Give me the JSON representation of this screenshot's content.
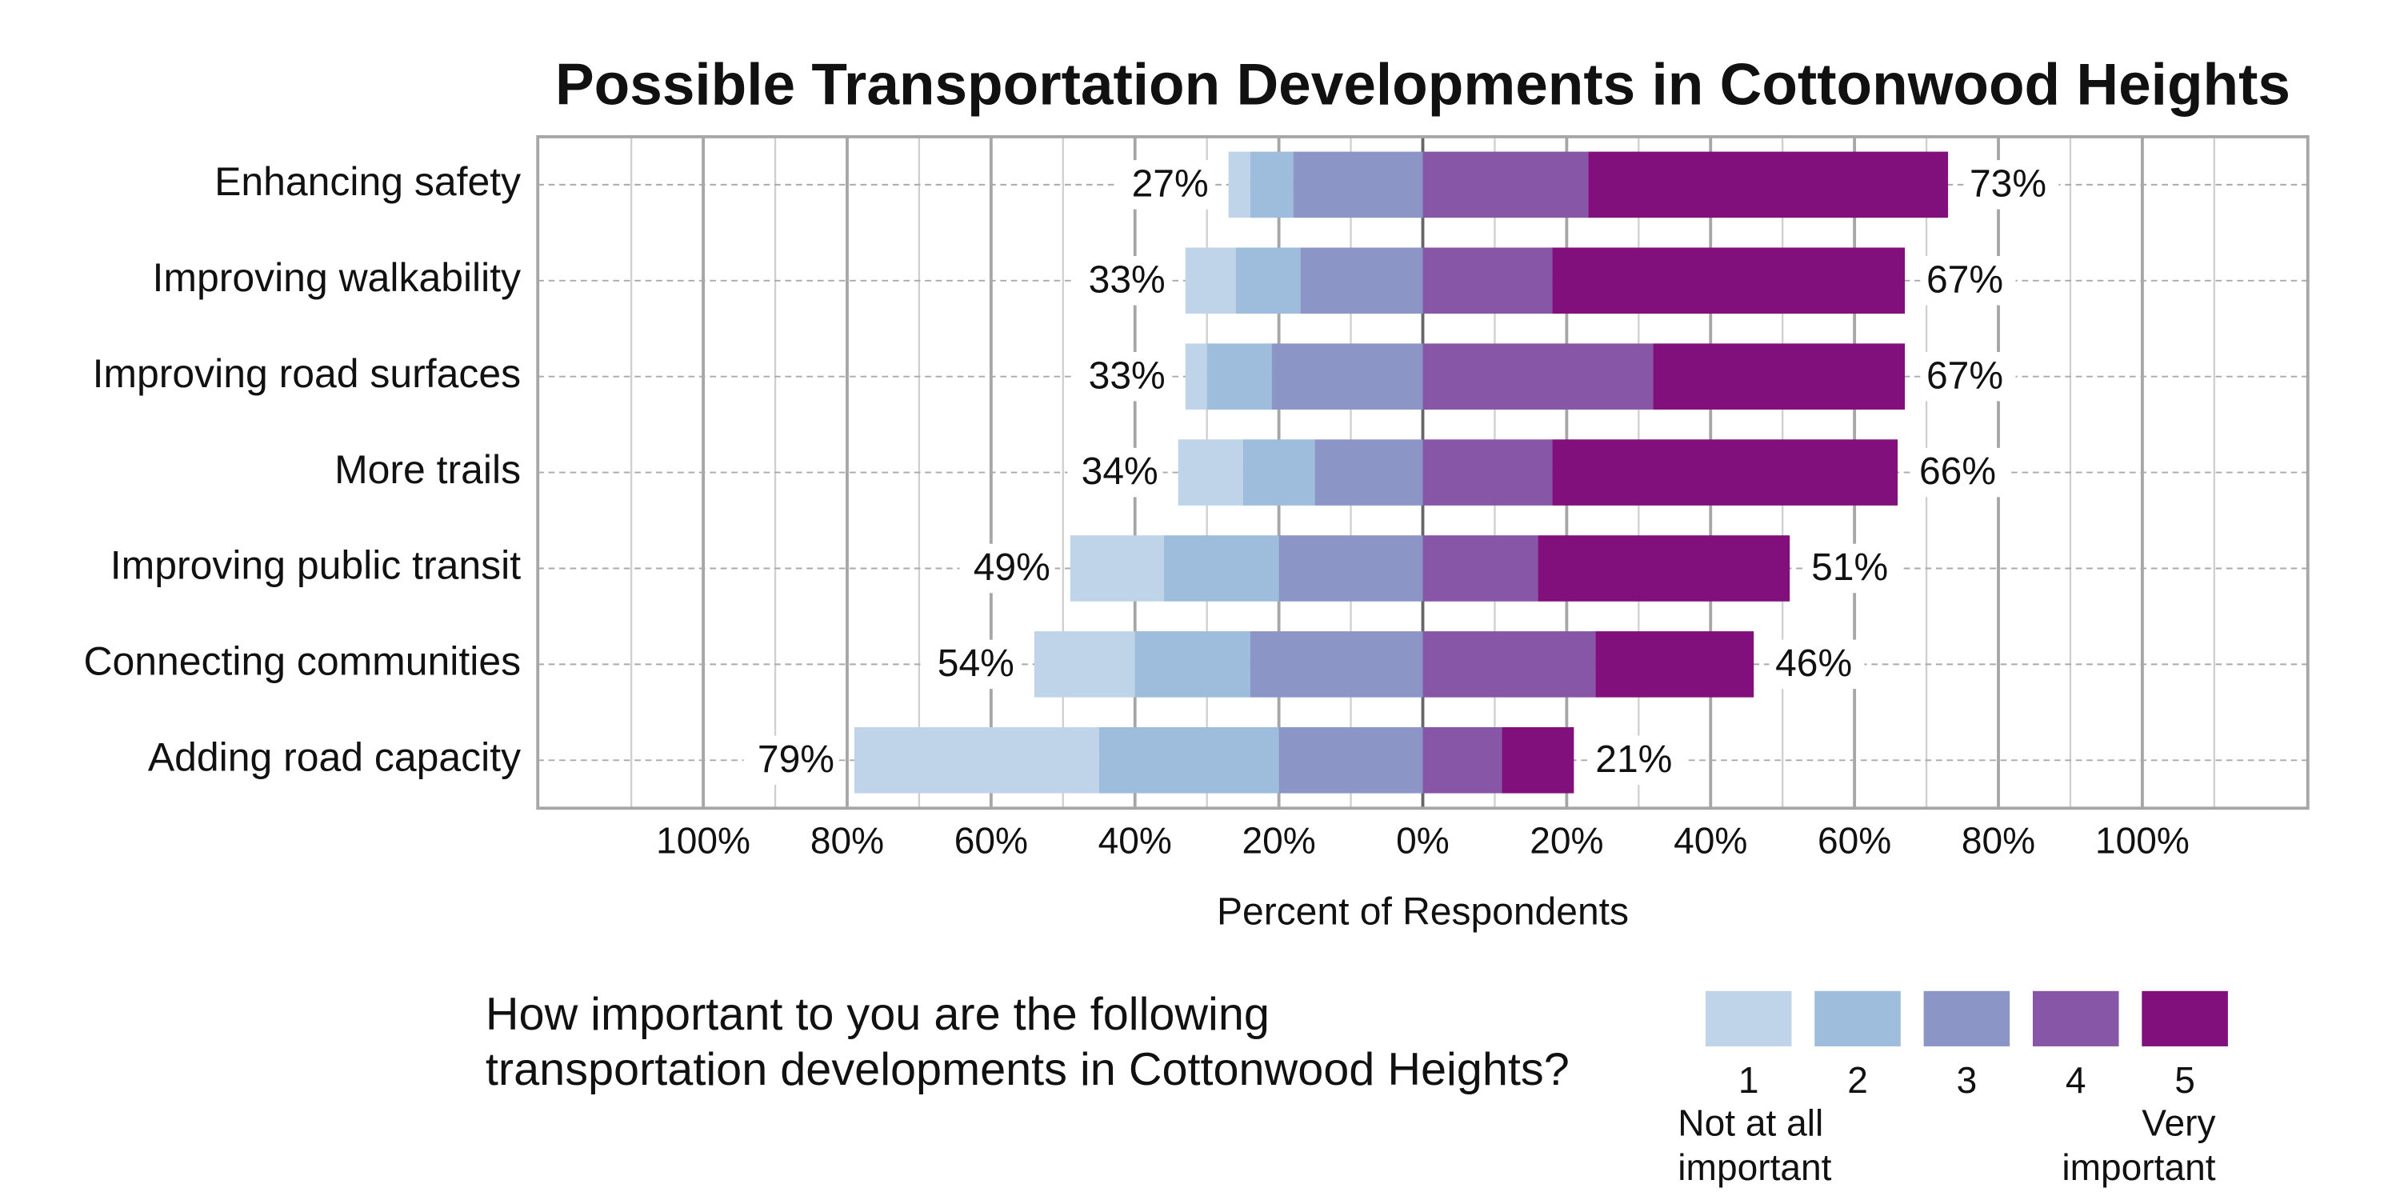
{
  "chart_data": {
    "type": "diverging_bar",
    "title": "Possible Transportation Developments in Cottonwood Heights",
    "x_label": "Percent of Respondents",
    "categories": [
      "Enhancing safety",
      "Improving walkability",
      "Improving road surfaces",
      "More trails",
      "Improving public transit",
      "Connecting communities",
      "Adding road capacity"
    ],
    "series": [
      {
        "name": "1",
        "color": "#bfd4e8",
        "side": "left",
        "values": [
          3,
          7,
          3,
          9,
          13,
          14,
          34
        ]
      },
      {
        "name": "2",
        "color": "#9ebcdb",
        "side": "left",
        "values": [
          6,
          9,
          9,
          10,
          16,
          16,
          25
        ]
      },
      {
        "name": "3",
        "color": "#8c96c6",
        "side": "left",
        "values": [
          18,
          17,
          21,
          15,
          20,
          24,
          20
        ]
      },
      {
        "name": "4",
        "color": "#8856a7",
        "side": "right",
        "values": [
          23,
          18,
          32,
          18,
          16,
          24,
          11
        ]
      },
      {
        "name": "5",
        "color": "#810f7c",
        "side": "right",
        "values": [
          50,
          49,
          35,
          48,
          35,
          22,
          10
        ]
      }
    ],
    "left_totals": {
      "values": [
        27,
        33,
        33,
        34,
        49,
        54,
        79
      ],
      "value_labels": [
        "27%",
        "33%",
        "33%",
        "34%",
        "49%",
        "54%",
        "79%"
      ]
    },
    "right_totals": {
      "values": [
        73,
        67,
        67,
        66,
        51,
        46,
        21
      ],
      "value_labels": [
        "73%",
        "67%",
        "67%",
        "66%",
        "51%",
        "46%",
        "21%"
      ]
    },
    "xlim": [
      -123,
      123
    ],
    "xticks": [
      {
        "value": -100,
        "label": "100%"
      },
      {
        "value": -80,
        "label": "80%"
      },
      {
        "value": -60,
        "label": "60%"
      },
      {
        "value": -40,
        "label": "40%"
      },
      {
        "value": -20,
        "label": "20%"
      },
      {
        "value": 0,
        "label": "0%"
      },
      {
        "value": 20,
        "label": "20%"
      },
      {
        "value": 40,
        "label": "40%"
      },
      {
        "value": 60,
        "label": "60%"
      },
      {
        "value": 80,
        "label": "80%"
      },
      {
        "value": 100,
        "label": "100%"
      }
    ],
    "x_minor_ticks": [
      -110,
      -90,
      -70,
      -50,
      -30,
      -10,
      10,
      30,
      50,
      70,
      90,
      110
    ],
    "grid": true,
    "legend": {
      "title": "How important to you are the following\ntransportation developments in Cottonwood Heights?",
      "low_label": "Not at all\nimportant",
      "high_label": "Very\nimportant"
    }
  }
}
